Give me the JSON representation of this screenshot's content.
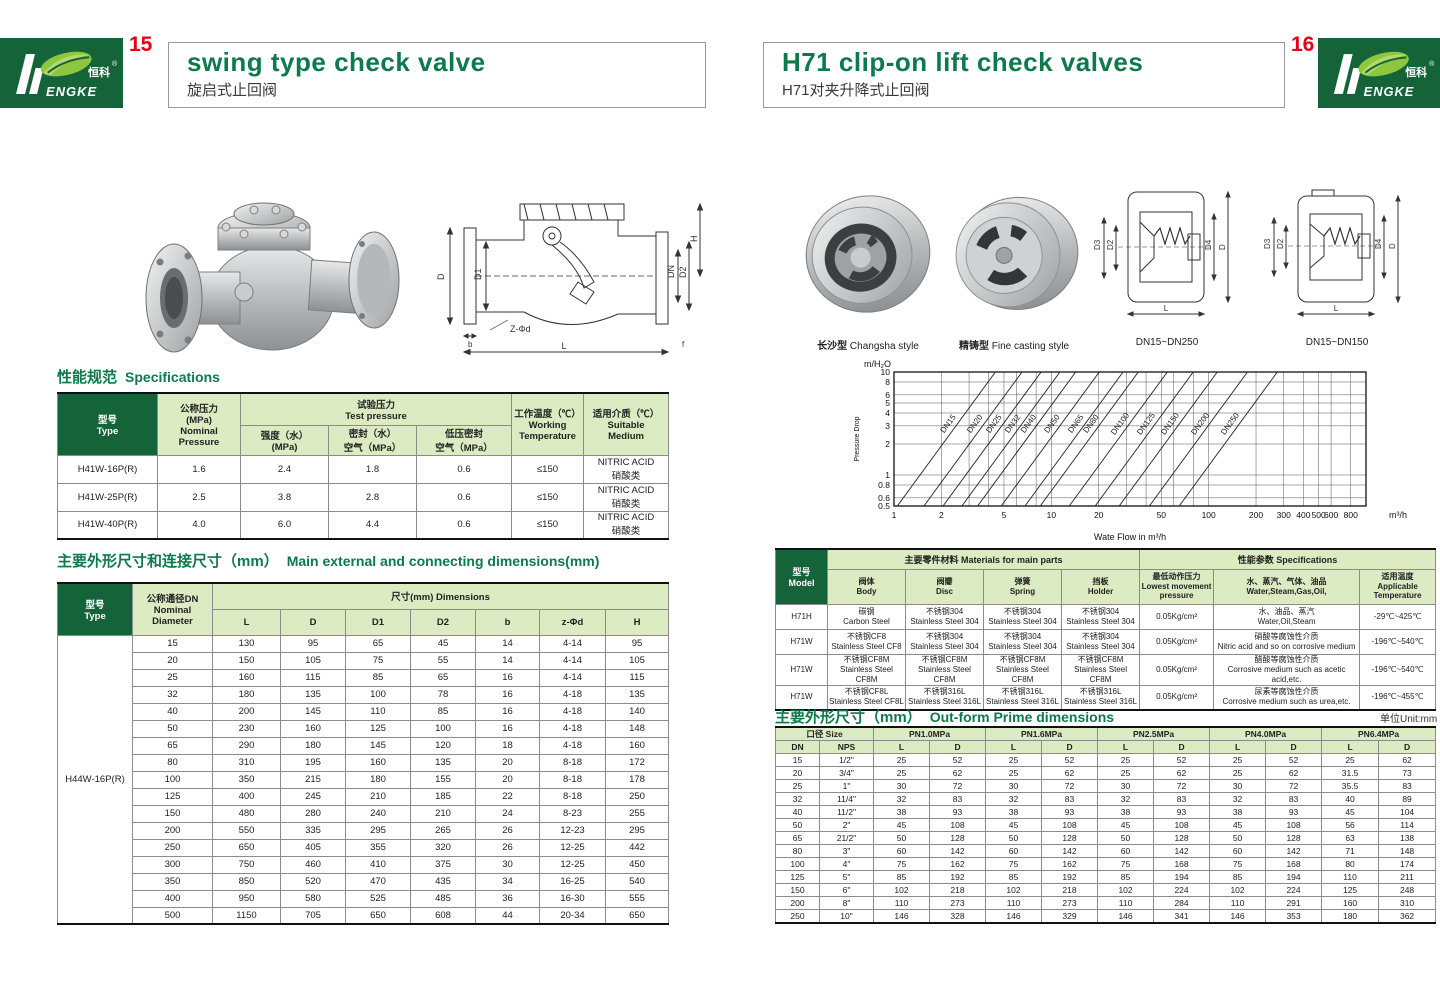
{
  "brand": {
    "initial": "H",
    "name_en": "ENGKE",
    "name_zh": "恒科",
    "reg": "®"
  },
  "left_page": {
    "number": "15",
    "title": "swing type check valve",
    "subtitle_zh": "旋启式止回阀",
    "sections": {
      "spec": {
        "zh": "性能规范",
        "en": "Specifications"
      },
      "dims": {
        "zh": "主要外形尺寸和连接尺寸（mm）",
        "en": "Main external and connecting dimensions(mm)"
      }
    },
    "spec_table": {
      "headers": {
        "type": "型号\nType",
        "nominal": "公称压力\n(MPa)\nNominal\nPressure",
        "test": "试验压力\nTest pressure",
        "strength": "强度（水）\n(MPa)",
        "seal": "密封（水）\n空气（MPa）",
        "low_seal": "低压密封\n空气（MPa）",
        "working": "工作温度（℃）\nWorking\nTemperature",
        "medium": "适用介质（℃）\nSuitable\nMedium"
      },
      "rows": [
        [
          "H41W-16P(R)",
          "1.6",
          "2.4",
          "1.8",
          "0.6",
          "≤150",
          "NITRIC ACID\n硝酸类"
        ],
        [
          "H41W-25P(R)",
          "2.5",
          "3.8",
          "2.8",
          "0.6",
          "≤150",
          "NITRIC ACID\n硝酸类"
        ],
        [
          "H41W-40P(R)",
          "4.0",
          "6.0",
          "4.4",
          "0.6",
          "≤150",
          "NITRIC ACID\n硝酸类"
        ]
      ]
    },
    "dims_table": {
      "headers": {
        "type": "型号\nType",
        "dn": "公称通径DN\nNominal\nDiameter",
        "dims": "尺寸(mm) Dimensions",
        "cols": [
          "L",
          "D",
          "D1",
          "D2",
          "b",
          "z-Φd",
          "H"
        ]
      },
      "span_label": "H44W-16P(R)",
      "rows": [
        [
          "15",
          "130",
          "95",
          "65",
          "45",
          "14",
          "4-14",
          "95"
        ],
        [
          "20",
          "150",
          "105",
          "75",
          "55",
          "14",
          "4-14",
          "105"
        ],
        [
          "25",
          "160",
          "115",
          "85",
          "65",
          "16",
          "4-14",
          "115"
        ],
        [
          "32",
          "180",
          "135",
          "100",
          "78",
          "16",
          "4-18",
          "135"
        ],
        [
          "40",
          "200",
          "145",
          "110",
          "85",
          "16",
          "4-18",
          "140"
        ],
        [
          "50",
          "230",
          "160",
          "125",
          "100",
          "16",
          "4-18",
          "148"
        ],
        [
          "65",
          "290",
          "180",
          "145",
          "120",
          "18",
          "4-18",
          "160"
        ],
        [
          "80",
          "310",
          "195",
          "160",
          "135",
          "20",
          "8-18",
          "172"
        ],
        [
          "100",
          "350",
          "215",
          "180",
          "155",
          "20",
          "8-18",
          "178"
        ],
        [
          "125",
          "400",
          "245",
          "210",
          "185",
          "22",
          "8-18",
          "250"
        ],
        [
          "150",
          "480",
          "280",
          "240",
          "210",
          "24",
          "8-23",
          "255"
        ],
        [
          "200",
          "550",
          "335",
          "295",
          "265",
          "26",
          "12-23",
          "295"
        ],
        [
          "250",
          "650",
          "405",
          "355",
          "320",
          "26",
          "12-25",
          "442"
        ],
        [
          "300",
          "750",
          "460",
          "410",
          "375",
          "30",
          "12-25",
          "450"
        ],
        [
          "350",
          "850",
          "520",
          "470",
          "435",
          "34",
          "16-25",
          "540"
        ],
        [
          "400",
          "950",
          "580",
          "525",
          "485",
          "36",
          "16-30",
          "555"
        ],
        [
          "500",
          "1150",
          "705",
          "650",
          "608",
          "44",
          "20-34",
          "650"
        ]
      ]
    },
    "drawing_labels": {
      "D": "D",
      "D1": "D1",
      "DN": "DN",
      "D2": "D2",
      "H": "H",
      "zphid": "Z-Φd",
      "b": "b",
      "L": "L",
      "f": "f"
    }
  },
  "right_page": {
    "number": "16",
    "title": "H71 clip-on lift check valves",
    "subtitle_zh": "H71对夹升降式止回阀",
    "photos": [
      {
        "caption_zh": "长沙型",
        "caption_en": "Changsha style"
      },
      {
        "caption_zh": "精铸型",
        "caption_en": "Fine casting style"
      }
    ],
    "drawings": [
      {
        "caption": "DN15~DN250",
        "labels": [
          "D3",
          "D2",
          "D4",
          "D",
          "L"
        ]
      },
      {
        "caption": "DN15~DN150",
        "labels": [
          "D3",
          "D2",
          "D4",
          "D",
          "L"
        ]
      }
    ],
    "sections": {
      "outform": {
        "zh": "主要外形尺寸（mm）",
        "en": "Out-form Prime dimensions"
      }
    },
    "unit_note": "单位Unit:mm",
    "materials_table": {
      "headers": {
        "model": "型号\nModel",
        "main_parts": "主要零件材料 Materials for main parts",
        "body": "阀体\nBody",
        "disc": "阀瓣\nDisc",
        "spring": "弹簧\nSpring",
        "holder": "挡板\nHolder",
        "specs": "性能参数 Specifications",
        "pressure": "最低动作压力\nLowest movement\npressure",
        "media": "水、蒸汽、气体、油品\nWater,Steam,Gas,Oil,",
        "temp": "适用温度\nApplicable\nTemperature"
      },
      "rows": [
        [
          "H71H",
          "碳钢\nCarbon Steel",
          "不锈钢304\nStainless Steel 304",
          "不锈钢304\nStainless Steel 304",
          "不锈钢304\nStainless Steel 304",
          "0.05Kg/cm²",
          "水、油品、蒸汽\nWater,Oil,Steam",
          "-29℃~425℃"
        ],
        [
          "H71W",
          "不锈钢CF8\nStainless Steel CF8",
          "不锈钢304\nStainless Steel 304",
          "不锈钢304\nStainless Steel 304",
          "不锈钢304\nStainless Steel 304",
          "0.05Kg/cm²",
          "硝酸等腐蚀性介质\nNitric acid and so on corrosive medium",
          "-196℃~540℃"
        ],
        [
          "H71W",
          "不锈钢CF8M\nStainless Steel CF8M",
          "不锈钢CF8M\nStainless Steel CF8M",
          "不锈钢CF8M\nStainless Steel CF8M",
          "不锈钢CF8M\nStainless Steel CF8M",
          "0.05Kg/cm²",
          "醋酸等腐蚀性介质\nCorrosive medium such as acetic acid,etc.",
          "-196℃~540℃"
        ],
        [
          "H71W",
          "不锈钢CF8L\nStainless Steel CF8L",
          "不锈钢316L\nStainless Steel 316L",
          "不锈钢316L\nStainless Steel 316L",
          "不锈钢316L\nStainless Steel 316L",
          "0.05Kg/cm²",
          "尿素等腐蚀性介质\nCorrosive medium such as urea,etc.",
          "-196℃~455℃"
        ]
      ]
    },
    "outform_table": {
      "headers": {
        "size": "口径 Size",
        "dn": "DN",
        "nps": "NPS",
        "pn_groups": [
          "PN1.0MPa",
          "PN1.6MPa",
          "PN2.5MPa",
          "PN4.0MPa",
          "PN6.4MPa"
        ],
        "l": "L",
        "d": "D"
      },
      "rows": [
        [
          "15",
          "1/2\"",
          "25",
          "52",
          "25",
          "52",
          "25",
          "52",
          "25",
          "52",
          "25",
          "62"
        ],
        [
          "20",
          "3/4\"",
          "25",
          "62",
          "25",
          "62",
          "25",
          "62",
          "25",
          "62",
          "31.5",
          "73"
        ],
        [
          "25",
          "1\"",
          "30",
          "72",
          "30",
          "72",
          "30",
          "72",
          "30",
          "72",
          "35.5",
          "83"
        ],
        [
          "32",
          "11/4\"",
          "32",
          "83",
          "32",
          "83",
          "32",
          "83",
          "32",
          "83",
          "40",
          "89"
        ],
        [
          "40",
          "11/2\"",
          "38",
          "93",
          "38",
          "93",
          "38",
          "93",
          "38",
          "93",
          "45",
          "104"
        ],
        [
          "50",
          "2\"",
          "45",
          "108",
          "45",
          "108",
          "45",
          "108",
          "45",
          "108",
          "56",
          "114"
        ],
        [
          "65",
          "21/2\"",
          "50",
          "128",
          "50",
          "128",
          "50",
          "128",
          "50",
          "128",
          "63",
          "138"
        ],
        [
          "80",
          "3\"",
          "60",
          "142",
          "60",
          "142",
          "60",
          "142",
          "60",
          "142",
          "71",
          "148"
        ],
        [
          "100",
          "4\"",
          "75",
          "162",
          "75",
          "162",
          "75",
          "168",
          "75",
          "168",
          "80",
          "174"
        ],
        [
          "125",
          "5\"",
          "85",
          "192",
          "85",
          "192",
          "85",
          "194",
          "85",
          "194",
          "110",
          "211"
        ],
        [
          "150",
          "6\"",
          "102",
          "218",
          "102",
          "218",
          "102",
          "224",
          "102",
          "224",
          "125",
          "248"
        ],
        [
          "200",
          "8\"",
          "110",
          "273",
          "110",
          "273",
          "110",
          "284",
          "110",
          "291",
          "160",
          "310"
        ],
        [
          "250",
          "10\"",
          "146",
          "328",
          "146",
          "329",
          "146",
          "341",
          "146",
          "353",
          "180",
          "362"
        ]
      ]
    }
  },
  "chart_data": {
    "type": "line",
    "title": "",
    "ylabel_unit": "m/H₂O",
    "ylabel": "Pressure Drop",
    "xlabel": "Wate Flow in m³/h",
    "x_unit": "m³/h",
    "x_scale": "log",
    "y_scale": "log",
    "xlim": [
      1,
      1000
    ],
    "ylim": [
      0.5,
      10
    ],
    "x_ticks": [
      1,
      2,
      5,
      10,
      20,
      50,
      100,
      200,
      300,
      400,
      500,
      600,
      800
    ],
    "y_ticks": [
      10,
      8,
      6,
      5,
      4,
      3,
      2,
      1,
      0.8,
      0.6,
      0.5
    ],
    "x_grid": [
      1,
      2,
      3,
      4,
      5,
      6,
      8,
      10,
      20,
      30,
      40,
      50,
      60,
      80,
      100,
      200,
      300,
      400,
      500,
      600,
      800
    ],
    "grid": true,
    "legend": "labels on lines",
    "x_ratio_ymax": 4.2,
    "series": [
      {
        "name": "DN15",
        "x_at_ymin": 1.05
      },
      {
        "name": "DN20",
        "x_at_ymin": 1.55
      },
      {
        "name": "DN25",
        "x_at_ymin": 2.05
      },
      {
        "name": "DN32",
        "x_at_ymin": 2.7
      },
      {
        "name": "DN40",
        "x_at_ymin": 3.4
      },
      {
        "name": "DN50",
        "x_at_ymin": 4.8
      },
      {
        "name": "DN65",
        "x_at_ymin": 6.8
      },
      {
        "name": "DN80",
        "x_at_ymin": 8.5
      },
      {
        "name": "DN100",
        "x_at_ymin": 13
      },
      {
        "name": "DN125",
        "x_at_ymin": 19
      },
      {
        "name": "DN150",
        "x_at_ymin": 27
      },
      {
        "name": "DN200",
        "x_at_ymin": 42
      },
      {
        "name": "DN250",
        "x_at_ymin": 65
      }
    ]
  }
}
